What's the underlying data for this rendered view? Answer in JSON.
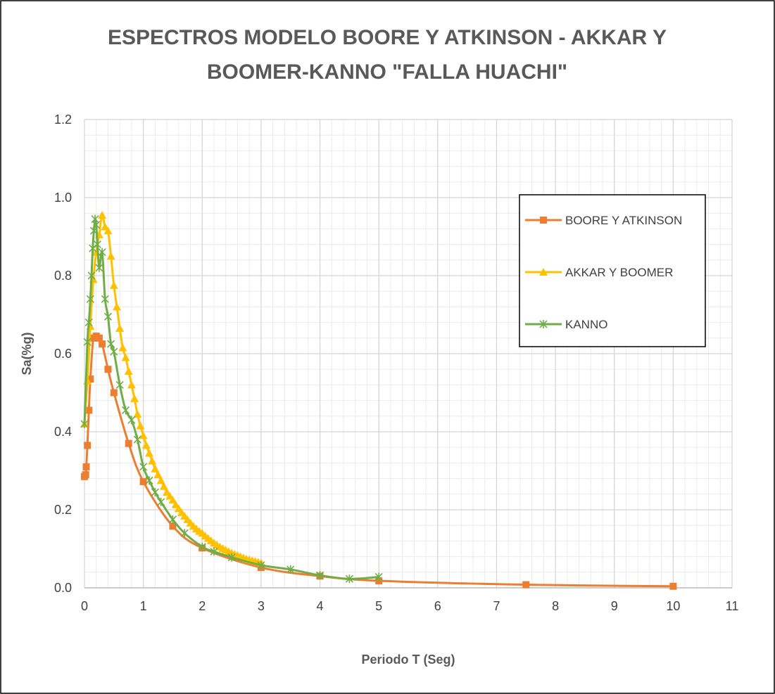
{
  "chart_data": {
    "type": "line",
    "title_line1": "ESPECTROS MODELO BOORE Y ATKINSON - AKKAR Y",
    "title_line2": "BOOMER-KANNO \"FALLA HUACHI\"",
    "xlabel": "Periodo T (Seg)",
    "ylabel": "Sa(%g)",
    "xlim": [
      0,
      11
    ],
    "ylim": [
      0,
      1.2
    ],
    "x_ticks": [
      0,
      1,
      2,
      3,
      4,
      5,
      6,
      7,
      8,
      9,
      10,
      11
    ],
    "y_ticks": [
      "0.0",
      "0.2",
      "0.4",
      "0.6",
      "0.8",
      "1.0",
      "1.2"
    ],
    "grid": "major and minor",
    "legend_position": "right",
    "series": [
      {
        "name": "BOORE Y ATKINSON",
        "color": "#ED7D31",
        "marker": "square",
        "x": [
          0.0,
          0.02,
          0.03,
          0.05,
          0.075,
          0.1,
          0.15,
          0.2,
          0.25,
          0.3,
          0.4,
          0.5,
          0.75,
          1.0,
          1.5,
          2.0,
          3.0,
          4.0,
          5.0,
          7.5,
          10.0
        ],
        "y": [
          0.285,
          0.29,
          0.31,
          0.365,
          0.455,
          0.535,
          0.64,
          0.645,
          0.64,
          0.625,
          0.56,
          0.5,
          0.37,
          0.272,
          0.158,
          0.102,
          0.052,
          0.03,
          0.018,
          0.008,
          0.004
        ]
      },
      {
        "name": "AKKAR Y BOOMER",
        "color": "#FFC000",
        "marker": "triangle",
        "x": [
          0.0,
          0.05,
          0.1,
          0.15,
          0.2,
          0.25,
          0.3,
          0.35,
          0.4,
          0.45,
          0.5,
          0.55,
          0.6,
          0.65,
          0.7,
          0.75,
          0.8,
          0.85,
          0.9,
          0.95,
          1.0,
          1.05,
          1.1,
          1.15,
          1.2,
          1.25,
          1.3,
          1.35,
          1.4,
          1.45,
          1.5,
          1.55,
          1.6,
          1.65,
          1.7,
          1.75,
          1.8,
          1.85,
          1.9,
          1.95,
          2.0,
          2.05,
          2.1,
          2.15,
          2.2,
          2.25,
          2.3,
          2.35,
          2.4,
          2.45,
          2.5,
          2.55,
          2.6,
          2.65,
          2.7,
          2.75,
          2.8,
          2.85,
          2.9,
          2.95,
          3.0
        ],
        "y": [
          0.42,
          0.53,
          0.67,
          0.79,
          0.86,
          0.905,
          0.955,
          0.925,
          0.915,
          0.85,
          0.775,
          0.72,
          0.665,
          0.615,
          0.59,
          0.555,
          0.52,
          0.485,
          0.445,
          0.415,
          0.39,
          0.365,
          0.345,
          0.325,
          0.305,
          0.29,
          0.275,
          0.26,
          0.245,
          0.235,
          0.225,
          0.213,
          0.203,
          0.193,
          0.184,
          0.175,
          0.166,
          0.158,
          0.151,
          0.145,
          0.14,
          0.133,
          0.127,
          0.121,
          0.115,
          0.11,
          0.105,
          0.101,
          0.097,
          0.093,
          0.089,
          0.086,
          0.083,
          0.08,
          0.077,
          0.074,
          0.072,
          0.07,
          0.068,
          0.066,
          0.064
        ]
      },
      {
        "name": "KANNO",
        "color": "#70AD47",
        "marker": "asterisk",
        "x": [
          0.0,
          0.05,
          0.075,
          0.1,
          0.12,
          0.14,
          0.16,
          0.18,
          0.2,
          0.22,
          0.25,
          0.3,
          0.35,
          0.4,
          0.45,
          0.5,
          0.6,
          0.7,
          0.8,
          0.9,
          1.0,
          1.1,
          1.2,
          1.3,
          1.5,
          1.7,
          2.0,
          2.2,
          2.5,
          3.0,
          3.5,
          4.0,
          4.5,
          5.0
        ],
        "y": [
          0.42,
          0.63,
          0.68,
          0.74,
          0.8,
          0.87,
          0.915,
          0.945,
          0.93,
          0.88,
          0.82,
          0.86,
          0.74,
          0.695,
          0.625,
          0.605,
          0.52,
          0.455,
          0.43,
          0.38,
          0.31,
          0.275,
          0.245,
          0.22,
          0.175,
          0.14,
          0.105,
          0.093,
          0.078,
          0.058,
          0.047,
          0.032,
          0.023,
          0.028
        ]
      }
    ]
  }
}
